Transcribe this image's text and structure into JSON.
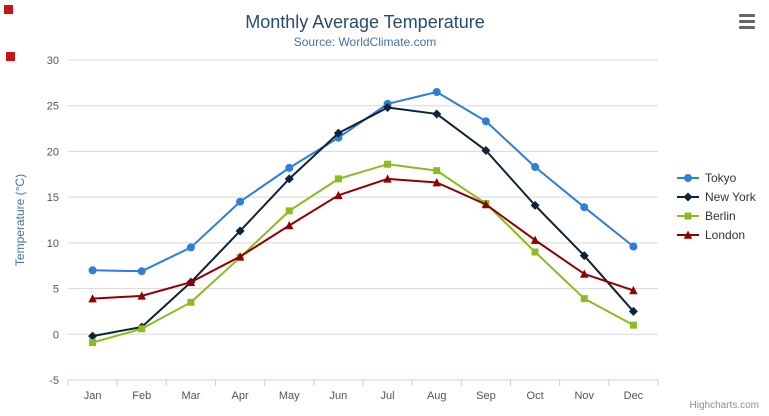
{
  "chart_data": {
    "type": "line",
    "title": "Monthly Average Temperature",
    "subtitle": "Source: WorldClimate.com",
    "xlabel": "",
    "ylabel": "Temperature (°C)",
    "categories": [
      "Jan",
      "Feb",
      "Mar",
      "Apr",
      "May",
      "Jun",
      "Jul",
      "Aug",
      "Sep",
      "Oct",
      "Nov",
      "Dec"
    ],
    "ylim": [
      -5,
      30
    ],
    "ytick_step": 5,
    "grid": true,
    "legend_position": "right",
    "series": [
      {
        "name": "Tokyo",
        "color": "#2f7ed8",
        "marker": "circle",
        "values": [
          7.0,
          6.9,
          9.5,
          14.5,
          18.2,
          21.5,
          25.2,
          26.5,
          23.3,
          18.3,
          13.9,
          9.6
        ]
      },
      {
        "name": "New York",
        "color": "#0d233a",
        "marker": "diamond",
        "values": [
          -0.2,
          0.8,
          5.7,
          11.3,
          17.0,
          22.0,
          24.8,
          24.1,
          20.1,
          14.1,
          8.6,
          2.5
        ]
      },
      {
        "name": "Berlin",
        "color": "#8bbc21",
        "marker": "square",
        "values": [
          -0.9,
          0.6,
          3.5,
          8.4,
          13.5,
          17.0,
          18.6,
          17.9,
          14.3,
          9.0,
          3.9,
          1.0
        ]
      },
      {
        "name": "London",
        "color": "#910000",
        "marker": "triangle",
        "values": [
          3.9,
          4.2,
          5.7,
          8.5,
          11.9,
          15.2,
          17.0,
          16.6,
          14.2,
          10.3,
          6.6,
          4.8
        ]
      }
    ]
  },
  "colors": {
    "title": "#274b6d",
    "subtitle": "#4572a7",
    "gridline": "#d8d8d8",
    "axis_line": "#c0d0e0",
    "legend_text": "#333333"
  },
  "export_menu": {
    "icon": "hamburger"
  },
  "credits": {
    "label": "Highcharts.com"
  },
  "overlay_markers": [
    {
      "x": 4,
      "y": 5
    },
    {
      "x": 6,
      "y": 52
    }
  ]
}
